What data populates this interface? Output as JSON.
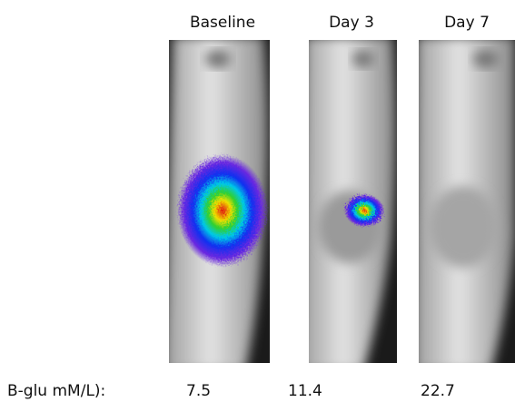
{
  "panels": [
    {
      "title": "Baseline",
      "value": 7.5
    },
    {
      "title": "Day 3",
      "value": 11.4
    },
    {
      "title": "Day 7",
      "value": 22.7
    }
  ],
  "row_label": "B-glu mM/L):"
}
